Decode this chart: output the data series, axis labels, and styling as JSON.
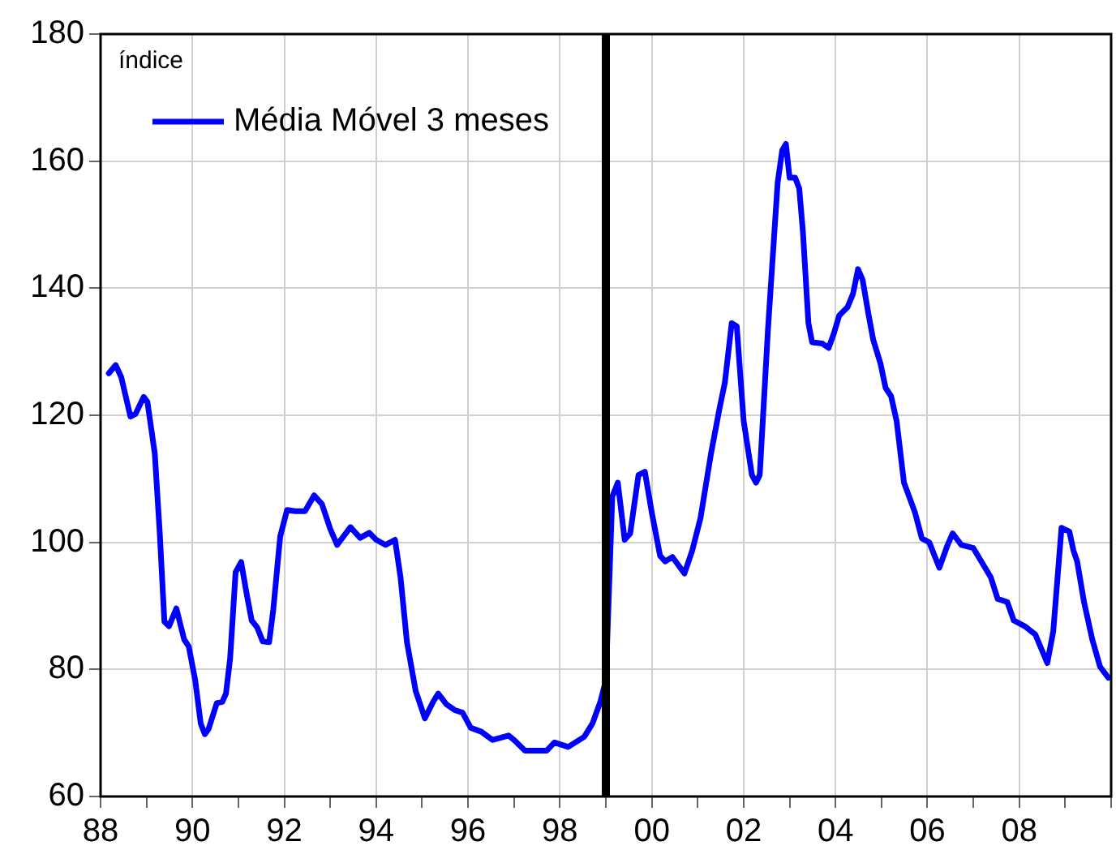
{
  "chart_data": {
    "type": "line",
    "ylabel": "índice",
    "legend": "top left",
    "grid": true,
    "marker": "none",
    "line_style": "solid",
    "xlim": [
      1988,
      2010
    ],
    "ylim": [
      60,
      180
    ],
    "yticks": [
      60,
      80,
      100,
      120,
      140,
      160,
      180
    ],
    "xticks": [
      {
        "value": 1988,
        "label": "88"
      },
      {
        "value": 1989,
        "label": null
      },
      {
        "value": 1990,
        "label": "90"
      },
      {
        "value": 1991,
        "label": null
      },
      {
        "value": 1992,
        "label": "92"
      },
      {
        "value": 1993,
        "label": null
      },
      {
        "value": 1994,
        "label": "94"
      },
      {
        "value": 1995,
        "label": null
      },
      {
        "value": 1996,
        "label": "96"
      },
      {
        "value": 1997,
        "label": null
      },
      {
        "value": 1998,
        "label": "98"
      },
      {
        "value": 1999,
        "label": null
      },
      {
        "value": 2000,
        "label": "00"
      },
      {
        "value": 2001,
        "label": null
      },
      {
        "value": 2002,
        "label": "02"
      },
      {
        "value": 2003,
        "label": null
      },
      {
        "value": 2004,
        "label": "04"
      },
      {
        "value": 2005,
        "label": null
      },
      {
        "value": 2006,
        "label": "06"
      },
      {
        "value": 2007,
        "label": null
      },
      {
        "value": 2008,
        "label": "08"
      },
      {
        "value": 2009,
        "label": null
      },
      {
        "value": 2010,
        "label": null
      }
    ],
    "ref_lines": [
      {
        "axis": "x",
        "value": 1999,
        "color": "#000000"
      }
    ],
    "x": [
      1988.18,
      1988.33,
      1988.45,
      1988.65,
      1988.76,
      1988.94,
      1989.02,
      1989.18,
      1989.29,
      1989.39,
      1989.49,
      1989.65,
      1989.82,
      1989.92,
      1990.06,
      1990.18,
      1990.27,
      1990.35,
      1990.53,
      1990.65,
      1990.73,
      1990.82,
      1990.94,
      1991.06,
      1991.18,
      1991.29,
      1991.41,
      1991.53,
      1991.67,
      1991.76,
      1991.91,
      1992.06,
      1992.24,
      1992.45,
      1992.65,
      1992.82,
      1993.0,
      1993.15,
      1993.44,
      1993.65,
      1993.85,
      1994.0,
      1994.2,
      1994.41,
      1994.53,
      1994.67,
      1994.86,
      1995.06,
      1995.24,
      1995.35,
      1995.53,
      1995.71,
      1995.88,
      1996.06,
      1996.29,
      1996.53,
      1996.88,
      1997.0,
      1997.24,
      1997.53,
      1997.71,
      1997.88,
      1998.18,
      1998.53,
      1998.71,
      1998.88,
      1999.0,
      1999.14,
      1999.26,
      1999.41,
      1999.53,
      1999.71,
      1999.85,
      2000.0,
      2000.18,
      2000.29,
      2000.45,
      2000.71,
      2000.88,
      2001.06,
      2001.29,
      2001.47,
      2001.59,
      2001.74,
      2001.85,
      2002.0,
      2002.18,
      2002.27,
      2002.35,
      2002.53,
      2002.74,
      2002.84,
      2002.92,
      2003.0,
      2003.12,
      2003.21,
      2003.29,
      2003.41,
      2003.49,
      2003.71,
      2003.85,
      2003.96,
      2004.08,
      2004.26,
      2004.38,
      2004.49,
      2004.59,
      2004.71,
      2004.82,
      2004.98,
      2005.09,
      2005.21,
      2005.33,
      2005.49,
      2005.73,
      2005.88,
      2006.04,
      2006.26,
      2006.44,
      2006.55,
      2006.74,
      2007.0,
      2007.24,
      2007.38,
      2007.53,
      2007.74,
      2007.88,
      2008.12,
      2008.35,
      2008.61,
      2008.74,
      2008.92,
      2009.09,
      2009.18,
      2009.26,
      2009.41,
      2009.59,
      2009.76,
      2009.94
    ],
    "series": [
      {
        "name": "Média Móvel 3 meses",
        "color": "#0000ff",
        "values": [
          126.6,
          127.9,
          126.0,
          119.8,
          120.2,
          122.9,
          122.1,
          114.0,
          101.3,
          87.5,
          86.8,
          89.6,
          84.7,
          83.6,
          78.3,
          71.5,
          69.8,
          70.6,
          74.7,
          74.9,
          76.2,
          81.7,
          95.3,
          96.9,
          91.9,
          87.7,
          86.6,
          84.4,
          84.3,
          89.4,
          100.9,
          105.1,
          104.9,
          104.9,
          107.4,
          106.0,
          102.1,
          99.6,
          102.4,
          100.7,
          101.5,
          100.4,
          99.6,
          100.4,
          94.5,
          84.3,
          76.6,
          72.3,
          74.9,
          76.2,
          74.5,
          73.6,
          73.2,
          70.8,
          70.2,
          68.9,
          69.6,
          68.9,
          67.2,
          67.2,
          67.2,
          68.5,
          67.8,
          69.4,
          71.5,
          74.9,
          78.3,
          107.2,
          109.4,
          100.4,
          101.4,
          110.6,
          111.1,
          104.7,
          97.9,
          97.0,
          97.7,
          95.1,
          98.7,
          103.8,
          114.0,
          120.9,
          125.1,
          134.5,
          134.0,
          119.1,
          110.6,
          109.4,
          110.6,
          133.6,
          156.6,
          161.7,
          162.7,
          157.4,
          157.4,
          155.7,
          148.9,
          134.5,
          131.5,
          131.3,
          130.6,
          132.8,
          135.7,
          137.0,
          139.1,
          143.0,
          141.3,
          136.2,
          131.9,
          128.1,
          124.3,
          123.0,
          119.1,
          109.4,
          104.7,
          100.6,
          100.0,
          96.0,
          99.6,
          101.4,
          99.6,
          99.1,
          96.2,
          94.5,
          91.1,
          90.6,
          87.7,
          86.8,
          85.5,
          81.0,
          86.0,
          102.3,
          101.7,
          98.7,
          97.0,
          90.6,
          84.7,
          80.4,
          78.7
        ]
      }
    ]
  }
}
